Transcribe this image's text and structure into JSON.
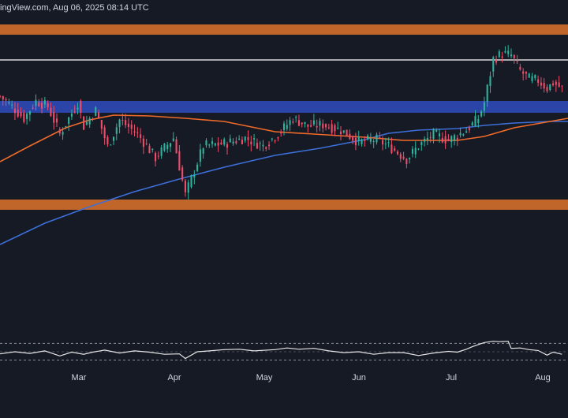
{
  "header": {
    "source_text": "ingView.com, Aug 06, 2025 08:14 UTC"
  },
  "colors": {
    "background": "#161a25",
    "up": "#2fb39c",
    "down": "#ef4e6a",
    "support_zone": "#c0662a",
    "demand_zone": "#2a44a8",
    "ma_slow": "#3d6fd8",
    "ma_fast": "#f06a2a",
    "resistance_line": "#ffffff",
    "rsi_line": "#e6e6e6"
  },
  "chart_data": [
    {
      "type": "candlestick",
      "title": "",
      "x_tick_labels": [
        "Mar",
        "Apr",
        "May",
        "Jun",
        "Jul",
        "Aug"
      ],
      "x_ticks_day": [
        31,
        61,
        92,
        122,
        153,
        184
      ],
      "x_range_day": [
        0,
        190
      ],
      "y_range": [
        0,
        530
      ],
      "zones": [
        {
          "name": "upper-supply-zone",
          "y_low": 486,
          "y_high": 499,
          "color": "#c0662a"
        },
        {
          "name": "blue-demand-zone",
          "y_low": 387,
          "y_high": 402,
          "color": "#2a44a8"
        },
        {
          "name": "lower-support-zone",
          "y_low": 264,
          "y_high": 277,
          "color": "#c0662a"
        }
      ],
      "lines": [
        {
          "name": "resistance-line",
          "y": 454,
          "color": "#ffffff"
        }
      ],
      "moving_averages": [
        {
          "name": "ma-slow",
          "color": "#3d6fd8",
          "points": [
            [
              0,
              220
            ],
            [
              15,
              247
            ],
            [
              30,
              268
            ],
            [
              45,
              287
            ],
            [
              60,
              303
            ],
            [
              75,
              318
            ],
            [
              92,
              333
            ],
            [
              107,
              342
            ],
            [
              122,
              353
            ],
            [
              130,
              361
            ],
            [
              140,
              365
            ],
            [
              153,
              367
            ],
            [
              162,
              371
            ],
            [
              172,
              374
            ],
            [
              184,
              376
            ],
            [
              190,
              376
            ]
          ]
        },
        {
          "name": "ma-fast",
          "color": "#f06a2a",
          "points": [
            [
              0,
              325
            ],
            [
              10,
              345
            ],
            [
              22,
              368
            ],
            [
              30,
              378
            ],
            [
              38,
              384
            ],
            [
              50,
              383
            ],
            [
              62,
              380
            ],
            [
              75,
              376
            ],
            [
              92,
              363
            ],
            [
              105,
              360
            ],
            [
              122,
              356
            ],
            [
              135,
              352
            ],
            [
              153,
              352
            ],
            [
              162,
              357
            ],
            [
              172,
              368
            ],
            [
              184,
              376
            ],
            [
              190,
              380
            ]
          ]
        }
      ],
      "candles_generated_from": {
        "anchors": [
          [
            0,
            408
          ],
          [
            4,
            395
          ],
          [
            8,
            380
          ],
          [
            12,
            402
          ],
          [
            16,
            395
          ],
          [
            20,
            360
          ],
          [
            26,
            400
          ],
          [
            28,
            370
          ],
          [
            32,
            390
          ],
          [
            36,
            344
          ],
          [
            40,
            378
          ],
          [
            46,
            360
          ],
          [
            52,
            330
          ],
          [
            58,
            355
          ],
          [
            62,
            283
          ],
          [
            68,
            345
          ],
          [
            75,
            348
          ],
          [
            82,
            355
          ],
          [
            88,
            345
          ],
          [
            93,
            360
          ],
          [
            98,
            380
          ],
          [
            103,
            370
          ],
          [
            108,
            372
          ],
          [
            114,
            365
          ],
          [
            120,
            350
          ],
          [
            126,
            353
          ],
          [
            130,
            345
          ],
          [
            136,
            328
          ],
          [
            140,
            345
          ],
          [
            145,
            360
          ],
          [
            150,
            352
          ],
          [
            156,
            365
          ],
          [
            160,
            380
          ],
          [
            162,
            400
          ],
          [
            165,
            455
          ],
          [
            168,
            462
          ],
          [
            171,
            460
          ],
          [
            174,
            440
          ],
          [
            177,
            430
          ],
          [
            180,
            428
          ],
          [
            183,
            418
          ],
          [
            185,
            425
          ],
          [
            188,
            418
          ]
        ]
      }
    },
    {
      "type": "line",
      "name": "rsi-panel",
      "y_range": [
        20,
        80
      ],
      "reference_levels": [
        70,
        30,
        50
      ],
      "points": [
        [
          0,
          45
        ],
        [
          5,
          50
        ],
        [
          10,
          46
        ],
        [
          15,
          52
        ],
        [
          20,
          40
        ],
        [
          24,
          49
        ],
        [
          28,
          44
        ],
        [
          31,
          49
        ],
        [
          35,
          54
        ],
        [
          40,
          47
        ],
        [
          45,
          52
        ],
        [
          50,
          49
        ],
        [
          55,
          44
        ],
        [
          60,
          45
        ],
        [
          62,
          34
        ],
        [
          66,
          50
        ],
        [
          70,
          52
        ],
        [
          75,
          55
        ],
        [
          80,
          56
        ],
        [
          85,
          52
        ],
        [
          92,
          55
        ],
        [
          96,
          59
        ],
        [
          100,
          56
        ],
        [
          105,
          58
        ],
        [
          110,
          52
        ],
        [
          115,
          48
        ],
        [
          120,
          50
        ],
        [
          125,
          44
        ],
        [
          130,
          48
        ],
        [
          135,
          48
        ],
        [
          140,
          41
        ],
        [
          145,
          47
        ],
        [
          150,
          51
        ],
        [
          153,
          49
        ],
        [
          156,
          56
        ],
        [
          158,
          62
        ],
        [
          160,
          67
        ],
        [
          162,
          72
        ],
        [
          165,
          75
        ],
        [
          167,
          74
        ],
        [
          170,
          75
        ],
        [
          171,
          58
        ],
        [
          174,
          59
        ],
        [
          177,
          55
        ],
        [
          180,
          53
        ],
        [
          183,
          42
        ],
        [
          185,
          49
        ],
        [
          188,
          44
        ]
      ]
    }
  ]
}
